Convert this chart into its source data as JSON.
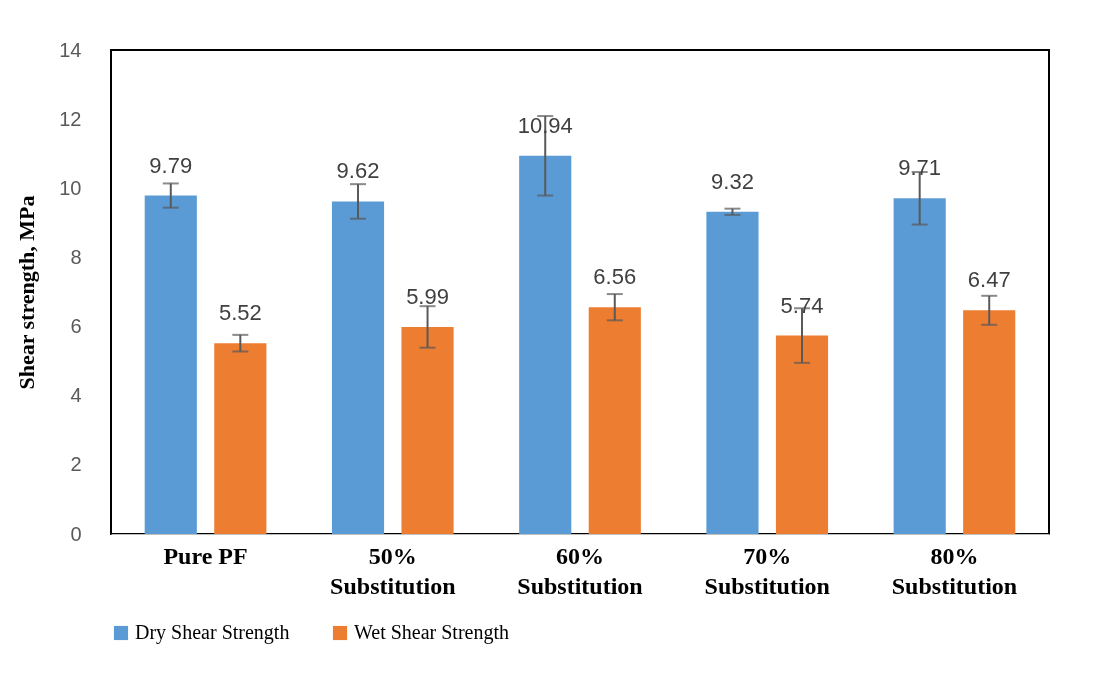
{
  "chart_data": {
    "type": "bar",
    "ylabel": "Shear strength, MPa",
    "categories": [
      "Pure PF",
      "50%\nSubstitution",
      "60%\nSubstitution",
      "70%\nSubstitution",
      "80%\nSubstitution"
    ],
    "series": [
      {
        "name": "Dry Shear Strength",
        "color": "#5b9bd5",
        "values": [
          9.79,
          9.62,
          10.94,
          9.32,
          9.71
        ],
        "errors": [
          0.35,
          0.5,
          1.15,
          0.09,
          0.76
        ]
      },
      {
        "name": "Wet Shear Strength",
        "color": "#ed7d31",
        "values": [
          5.52,
          5.99,
          6.56,
          5.74,
          6.47
        ],
        "errors": [
          0.24,
          0.6,
          0.38,
          0.79,
          0.42
        ]
      }
    ],
    "ylim": [
      0,
      14
    ],
    "yticks": [
      0,
      2,
      4,
      6,
      8,
      10,
      12,
      14
    ],
    "grid": false,
    "legend": "bottom",
    "data_labels": true
  }
}
